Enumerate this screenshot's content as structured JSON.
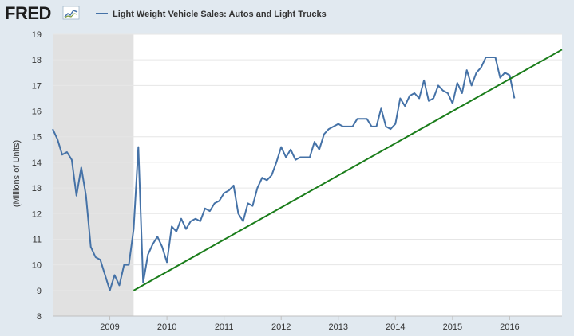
{
  "brand": {
    "logo": "FRED"
  },
  "chart_data": {
    "type": "line",
    "title": "",
    "xlabel": "",
    "ylabel": "(Millions of Units)",
    "ylim": [
      8,
      19
    ],
    "xlim": [
      "2008-01",
      "2016-12"
    ],
    "y_ticks": [
      8,
      9,
      10,
      11,
      12,
      13,
      14,
      15,
      16,
      17,
      18,
      19
    ],
    "x_ticks": [
      "2009",
      "2010",
      "2011",
      "2012",
      "2013",
      "2014",
      "2015",
      "2016"
    ],
    "grid": "horizontal",
    "legend": {
      "placement": "top-left"
    },
    "recession": {
      "start": "2008-01",
      "end": "2009-06",
      "color": "#e1e1e1"
    },
    "series": [
      {
        "name": "Light Weight Vehicle Sales: Autos and Light Trucks",
        "color": "#4572a7",
        "points": [
          [
            "2008-01",
            15.3
          ],
          [
            "2008-02",
            14.9
          ],
          [
            "2008-03",
            14.3
          ],
          [
            "2008-04",
            14.4
          ],
          [
            "2008-05",
            14.1
          ],
          [
            "2008-06",
            12.7
          ],
          [
            "2008-07",
            13.8
          ],
          [
            "2008-08",
            12.7
          ],
          [
            "2008-09",
            10.7
          ],
          [
            "2008-10",
            10.3
          ],
          [
            "2008-11",
            10.2
          ],
          [
            "2008-12",
            9.6
          ],
          [
            "2009-01",
            9.0
          ],
          [
            "2009-02",
            9.6
          ],
          [
            "2009-03",
            9.2
          ],
          [
            "2009-04",
            10.0
          ],
          [
            "2009-05",
            10.0
          ],
          [
            "2009-06",
            11.4
          ],
          [
            "2009-07",
            14.6
          ],
          [
            "2009-08",
            9.3
          ],
          [
            "2009-09",
            10.4
          ],
          [
            "2009-10",
            10.8
          ],
          [
            "2009-11",
            11.1
          ],
          [
            "2009-12",
            10.7
          ],
          [
            "2010-01",
            10.1
          ],
          [
            "2010-02",
            11.5
          ],
          [
            "2010-03",
            11.3
          ],
          [
            "2010-04",
            11.8
          ],
          [
            "2010-05",
            11.4
          ],
          [
            "2010-06",
            11.7
          ],
          [
            "2010-07",
            11.8
          ],
          [
            "2010-08",
            11.7
          ],
          [
            "2010-09",
            12.2
          ],
          [
            "2010-10",
            12.1
          ],
          [
            "2010-11",
            12.4
          ],
          [
            "2010-12",
            12.5
          ],
          [
            "2011-01",
            12.8
          ],
          [
            "2011-02",
            12.9
          ],
          [
            "2011-03",
            13.1
          ],
          [
            "2011-04",
            12.0
          ],
          [
            "2011-05",
            11.7
          ],
          [
            "2011-06",
            12.4
          ],
          [
            "2011-07",
            12.3
          ],
          [
            "2011-08",
            13.0
          ],
          [
            "2011-09",
            13.4
          ],
          [
            "2011-10",
            13.3
          ],
          [
            "2011-11",
            13.5
          ],
          [
            "2011-12",
            14.0
          ],
          [
            "2012-01",
            14.6
          ],
          [
            "2012-02",
            14.2
          ],
          [
            "2012-03",
            14.5
          ],
          [
            "2012-04",
            14.1
          ],
          [
            "2012-05",
            14.2
          ],
          [
            "2012-06",
            14.2
          ],
          [
            "2012-07",
            14.2
          ],
          [
            "2012-08",
            14.8
          ],
          [
            "2012-09",
            14.5
          ],
          [
            "2012-10",
            15.1
          ],
          [
            "2012-11",
            15.3
          ],
          [
            "2012-12",
            15.4
          ],
          [
            "2013-01",
            15.5
          ],
          [
            "2013-02",
            15.4
          ],
          [
            "2013-03",
            15.4
          ],
          [
            "2013-04",
            15.4
          ],
          [
            "2013-05",
            15.7
          ],
          [
            "2013-06",
            15.7
          ],
          [
            "2013-07",
            15.7
          ],
          [
            "2013-08",
            15.4
          ],
          [
            "2013-09",
            15.4
          ],
          [
            "2013-10",
            16.1
          ],
          [
            "2013-11",
            15.4
          ],
          [
            "2013-12",
            15.3
          ],
          [
            "2014-01",
            15.5
          ],
          [
            "2014-02",
            16.5
          ],
          [
            "2014-03",
            16.2
          ],
          [
            "2014-04",
            16.6
          ],
          [
            "2014-05",
            16.7
          ],
          [
            "2014-06",
            16.5
          ],
          [
            "2014-07",
            17.2
          ],
          [
            "2014-08",
            16.4
          ],
          [
            "2014-09",
            16.5
          ],
          [
            "2014-10",
            17.0
          ],
          [
            "2014-11",
            16.8
          ],
          [
            "2014-12",
            16.7
          ],
          [
            "2015-01",
            16.3
          ],
          [
            "2015-02",
            17.1
          ],
          [
            "2015-03",
            16.7
          ],
          [
            "2015-04",
            17.6
          ],
          [
            "2015-05",
            17.0
          ],
          [
            "2015-06",
            17.5
          ],
          [
            "2015-07",
            17.7
          ],
          [
            "2015-08",
            18.1
          ],
          [
            "2015-09",
            18.1
          ],
          [
            "2015-10",
            18.1
          ],
          [
            "2015-11",
            17.3
          ],
          [
            "2015-12",
            17.5
          ],
          [
            "2016-01",
            17.4
          ],
          [
            "2016-02",
            16.5
          ]
        ]
      }
    ],
    "annotations": [
      {
        "type": "trend-line",
        "color": "#1a7d1a",
        "from": [
          "2009-06",
          9.0
        ],
        "to": [
          "2016-12",
          18.4
        ]
      }
    ]
  }
}
